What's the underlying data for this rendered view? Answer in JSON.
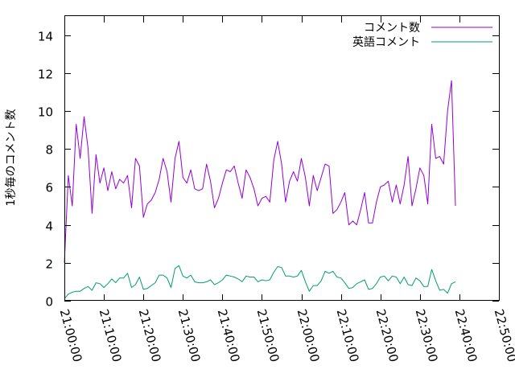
{
  "chart_data": {
    "type": "line",
    "title": "",
    "xlabel": "",
    "ylabel": "1秒毎のコメント数",
    "ylim": [
      0,
      15
    ],
    "yticks": [
      0,
      2,
      4,
      6,
      8,
      10,
      12,
      14
    ],
    "xlim": [
      "21:00:00",
      "22:50:00"
    ],
    "xticks": [
      "21:00:00",
      "21:10:00",
      "21:20:00",
      "21:30:00",
      "21:40:00",
      "21:50:00",
      "22:00:00",
      "22:10:00",
      "22:20:00",
      "22:30:00",
      "22:40:00",
      "22:50:00"
    ],
    "grid": false,
    "legend": "top-right",
    "series": [
      {
        "name": "コメント数",
        "color": "#9400d3",
        "points": [
          [
            "21:00:00",
            2.0
          ],
          [
            "21:01:00",
            6.6
          ],
          [
            "21:02:00",
            5.0
          ],
          [
            "21:03:00",
            9.3
          ],
          [
            "21:04:00",
            7.5
          ],
          [
            "21:05:00",
            9.7
          ],
          [
            "21:06:00",
            8.0
          ],
          [
            "21:07:00",
            4.6
          ],
          [
            "21:08:00",
            7.7
          ],
          [
            "21:09:00",
            6.2
          ],
          [
            "21:10:00",
            7.0
          ],
          [
            "21:11:00",
            5.8
          ],
          [
            "21:12:00",
            6.8
          ],
          [
            "21:13:00",
            5.9
          ],
          [
            "21:14:00",
            6.4
          ],
          [
            "21:15:00",
            6.2
          ],
          [
            "21:16:00",
            6.6
          ],
          [
            "21:17:00",
            4.9
          ],
          [
            "21:18:00",
            7.5
          ],
          [
            "21:19:00",
            7.1
          ],
          [
            "21:20:00",
            4.4
          ],
          [
            "21:21:00",
            5.1
          ],
          [
            "21:22:00",
            5.3
          ],
          [
            "21:23:00",
            5.7
          ],
          [
            "21:24:00",
            6.4
          ],
          [
            "21:25:00",
            7.5
          ],
          [
            "21:26:00",
            6.8
          ],
          [
            "21:27:00",
            5.2
          ],
          [
            "21:28:00",
            7.5
          ],
          [
            "21:29:00",
            8.4
          ],
          [
            "21:30:00",
            6.5
          ],
          [
            "21:31:00",
            6.2
          ],
          [
            "21:32:00",
            6.9
          ],
          [
            "21:33:00",
            5.9
          ],
          [
            "21:34:00",
            5.8
          ],
          [
            "21:35:00",
            5.9
          ],
          [
            "21:36:00",
            7.2
          ],
          [
            "21:37:00",
            6.3
          ],
          [
            "21:38:00",
            4.9
          ],
          [
            "21:39:00",
            5.4
          ],
          [
            "21:40:00",
            6.2
          ],
          [
            "21:41:00",
            6.9
          ],
          [
            "21:42:00",
            6.8
          ],
          [
            "21:43:00",
            7.1
          ],
          [
            "21:44:00",
            6.2
          ],
          [
            "21:45:00",
            5.4
          ],
          [
            "21:46:00",
            6.9
          ],
          [
            "21:47:00",
            6.5
          ],
          [
            "21:48:00",
            5.9
          ],
          [
            "21:49:00",
            5.0
          ],
          [
            "21:50:00",
            5.4
          ],
          [
            "21:51:00",
            5.5
          ],
          [
            "21:52:00",
            5.2
          ],
          [
            "21:53:00",
            7.4
          ],
          [
            "21:54:00",
            8.4
          ],
          [
            "21:55:00",
            7.2
          ],
          [
            "21:56:00",
            5.2
          ],
          [
            "21:57:00",
            6.3
          ],
          [
            "21:58:00",
            6.8
          ],
          [
            "21:59:00",
            6.3
          ],
          [
            "22:00:00",
            7.5
          ],
          [
            "22:01:00",
            6.5
          ],
          [
            "22:02:00",
            5.0
          ],
          [
            "22:03:00",
            6.6
          ],
          [
            "22:04:00",
            5.8
          ],
          [
            "22:05:00",
            6.5
          ],
          [
            "22:06:00",
            7.2
          ],
          [
            "22:07:00",
            7.1
          ],
          [
            "22:08:00",
            4.6
          ],
          [
            "22:09:00",
            4.8
          ],
          [
            "22:10:00",
            5.2
          ],
          [
            "22:11:00",
            5.7
          ],
          [
            "22:12:00",
            4.0
          ],
          [
            "22:13:00",
            4.2
          ],
          [
            "22:14:00",
            4.0
          ],
          [
            "22:15:00",
            4.8
          ],
          [
            "22:16:00",
            5.7
          ],
          [
            "22:17:00",
            4.1
          ],
          [
            "22:18:00",
            4.1
          ],
          [
            "22:19:00",
            5.2
          ],
          [
            "22:20:00",
            6.0
          ],
          [
            "22:21:00",
            6.1
          ],
          [
            "22:22:00",
            6.3
          ],
          [
            "22:23:00",
            5.2
          ],
          [
            "22:24:00",
            6.1
          ],
          [
            "22:25:00",
            5.1
          ],
          [
            "22:26:00",
            6.1
          ],
          [
            "22:27:00",
            7.6
          ],
          [
            "22:28:00",
            5.0
          ],
          [
            "22:29:00",
            5.9
          ],
          [
            "22:30:00",
            7.0
          ],
          [
            "22:31:00",
            6.6
          ],
          [
            "22:32:00",
            5.1
          ],
          [
            "22:33:00",
            9.3
          ],
          [
            "22:34:00",
            7.5
          ],
          [
            "22:35:00",
            7.6
          ],
          [
            "22:36:00",
            7.2
          ],
          [
            "22:37:00",
            10.0
          ],
          [
            "22:38:00",
            11.6
          ],
          [
            "22:39:00",
            5.0
          ]
        ]
      },
      {
        "name": "英語コメント",
        "color": "#009e73",
        "points": [
          [
            "21:00:00",
            0.1
          ],
          [
            "21:01:00",
            0.35
          ],
          [
            "21:02:00",
            0.45
          ],
          [
            "21:03:00",
            0.5
          ],
          [
            "21:04:00",
            0.5
          ],
          [
            "21:05:00",
            0.65
          ],
          [
            "21:06:00",
            0.75
          ],
          [
            "21:07:00",
            0.55
          ],
          [
            "21:08:00",
            0.95
          ],
          [
            "21:09:00",
            0.9
          ],
          [
            "21:10:00",
            0.7
          ],
          [
            "21:11:00",
            0.9
          ],
          [
            "21:12:00",
            1.15
          ],
          [
            "21:13:00",
            0.95
          ],
          [
            "21:14:00",
            1.2
          ],
          [
            "21:15:00",
            1.2
          ],
          [
            "21:16:00",
            1.45
          ],
          [
            "21:17:00",
            0.7
          ],
          [
            "21:18:00",
            0.85
          ],
          [
            "21:19:00",
            1.25
          ],
          [
            "21:20:00",
            0.6
          ],
          [
            "21:21:00",
            0.65
          ],
          [
            "21:22:00",
            0.8
          ],
          [
            "21:23:00",
            0.95
          ],
          [
            "21:24:00",
            1.35
          ],
          [
            "21:25:00",
            1.35
          ],
          [
            "21:26:00",
            1.2
          ],
          [
            "21:27:00",
            0.7
          ],
          [
            "21:28:00",
            1.7
          ],
          [
            "21:29:00",
            1.85
          ],
          [
            "21:30:00",
            1.3
          ],
          [
            "21:31:00",
            1.2
          ],
          [
            "21:32:00",
            1.35
          ],
          [
            "21:33:00",
            1.0
          ],
          [
            "21:34:00",
            0.95
          ],
          [
            "21:35:00",
            0.95
          ],
          [
            "21:36:00",
            1.0
          ],
          [
            "21:37:00",
            1.1
          ],
          [
            "21:38:00",
            0.85
          ],
          [
            "21:39:00",
            0.95
          ],
          [
            "21:40:00",
            1.1
          ],
          [
            "21:41:00",
            1.35
          ],
          [
            "21:42:00",
            1.3
          ],
          [
            "21:43:00",
            1.25
          ],
          [
            "21:44:00",
            1.15
          ],
          [
            "21:45:00",
            1.0
          ],
          [
            "21:46:00",
            1.3
          ],
          [
            "21:47:00",
            1.25
          ],
          [
            "21:48:00",
            1.25
          ],
          [
            "21:49:00",
            1.0
          ],
          [
            "21:50:00",
            1.1
          ],
          [
            "21:51:00",
            1.05
          ],
          [
            "21:52:00",
            1.1
          ],
          [
            "21:53:00",
            1.5
          ],
          [
            "21:54:00",
            1.8
          ],
          [
            "21:55:00",
            1.75
          ],
          [
            "21:56:00",
            1.3
          ],
          [
            "21:57:00",
            1.3
          ],
          [
            "21:58:00",
            1.25
          ],
          [
            "21:59:00",
            1.3
          ],
          [
            "22:00:00",
            1.6
          ],
          [
            "22:01:00",
            1.0
          ],
          [
            "22:02:00",
            0.5
          ],
          [
            "22:03:00",
            0.8
          ],
          [
            "22:04:00",
            0.8
          ],
          [
            "22:05:00",
            1.05
          ],
          [
            "22:06:00",
            1.55
          ],
          [
            "22:07:00",
            1.45
          ],
          [
            "22:08:00",
            1.55
          ],
          [
            "22:09:00",
            1.25
          ],
          [
            "22:10:00",
            1.2
          ],
          [
            "22:11:00",
            0.95
          ],
          [
            "22:12:00",
            0.65
          ],
          [
            "22:13:00",
            0.7
          ],
          [
            "22:14:00",
            0.9
          ],
          [
            "22:15:00",
            1.0
          ],
          [
            "22:16:00",
            1.1
          ],
          [
            "22:17:00",
            0.6
          ],
          [
            "22:18:00",
            0.65
          ],
          [
            "22:19:00",
            0.9
          ],
          [
            "22:20:00",
            1.25
          ],
          [
            "22:21:00",
            1.3
          ],
          [
            "22:22:00",
            1.05
          ],
          [
            "22:23:00",
            1.3
          ],
          [
            "22:24:00",
            1.25
          ],
          [
            "22:25:00",
            0.9
          ],
          [
            "22:26:00",
            1.25
          ],
          [
            "22:27:00",
            0.85
          ],
          [
            "22:28:00",
            0.8
          ],
          [
            "22:29:00",
            1.2
          ],
          [
            "22:30:00",
            1.05
          ],
          [
            "22:31:00",
            0.75
          ],
          [
            "22:32:00",
            0.75
          ],
          [
            "22:33:00",
            1.65
          ],
          [
            "22:34:00",
            1.05
          ],
          [
            "22:35:00",
            0.55
          ],
          [
            "22:36:00",
            0.6
          ],
          [
            "22:37:00",
            0.4
          ],
          [
            "22:38:00",
            0.9
          ],
          [
            "22:39:00",
            1.0
          ]
        ]
      }
    ]
  }
}
